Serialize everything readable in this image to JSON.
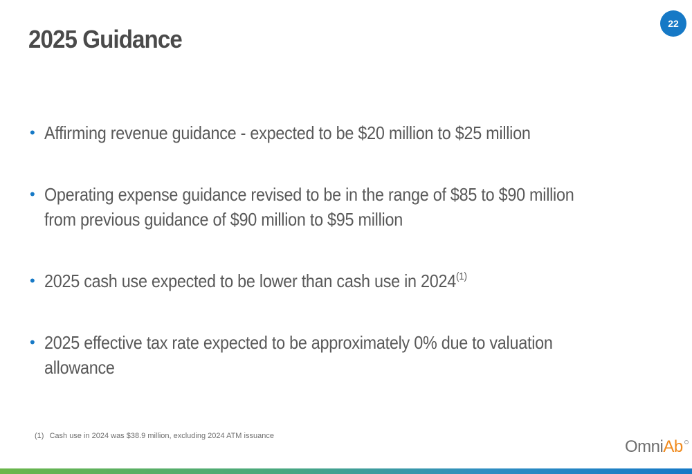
{
  "slide": {
    "title": "2025 Guidance",
    "page_number": "22"
  },
  "bullet_symbol": "•",
  "bullets": [
    {
      "lines": [
        "Affirming revenue guidance - expected to be $20 million to $25 million"
      ]
    },
    {
      "lines": [
        "Operating expense guidance revised to be in the range of $85 to $90 million",
        "from previous guidance of $90 million to $95 million"
      ]
    },
    {
      "lines": [
        "2025 cash use expected to be lower than cash use in 2024"
      ],
      "superscript": "(1)"
    },
    {
      "lines": [
        "2025 effective tax rate expected to be approximately 0% due to valuation",
        "allowance"
      ]
    }
  ],
  "footnote": {
    "marker": "(1)",
    "text": "Cash use in 2024 was $38.9 million, excluding 2024 ATM issuance"
  },
  "logo": {
    "part_gray": "Omni",
    "part_accent": "Ab"
  },
  "colors": {
    "accent_blue": "#1679c6",
    "logo_orange": "#f08a1c",
    "title_gray": "#4a4a4a",
    "body_gray": "#595959",
    "bar_green": "#6ab64a"
  }
}
